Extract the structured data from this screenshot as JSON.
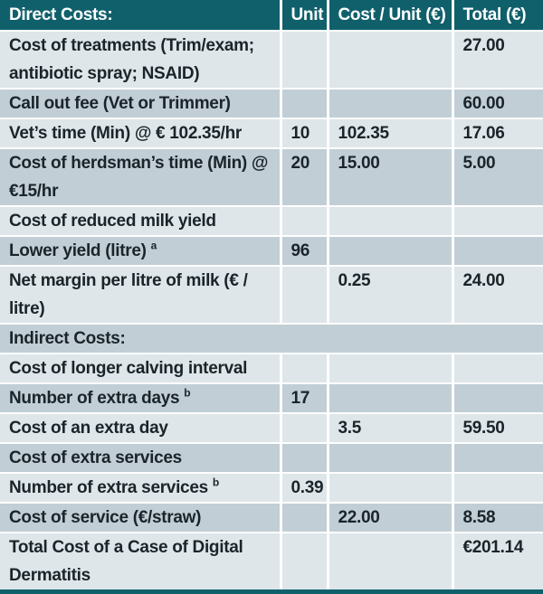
{
  "colors": {
    "accent_teal": "#10606b",
    "row_light": "#dee6e9",
    "row_dark": "#c1ced5",
    "header_text": "#ffffff",
    "body_text": "#1a242a"
  },
  "chart_data": {
    "type": "table",
    "columns": [
      "Direct Costs:",
      "Unit",
      "Cost / Unit (€)",
      "Total (€)"
    ],
    "rows": [
      {
        "label": "Cost of treatments (Trim/exam; antibiotic spray; NSAID)",
        "unit": "",
        "cost_per_unit": "",
        "total": "27.00"
      },
      {
        "label": "Call out fee (Vet or Trimmer)",
        "unit": "",
        "cost_per_unit": "",
        "total": "60.00"
      },
      {
        "label": "Vet’s time (Min) @ € 102.35/hr",
        "unit": "10",
        "cost_per_unit": "102.35",
        "total": "17.06"
      },
      {
        "label": "Cost of herdsman’s time (Min) @ €15/hr",
        "unit": "20",
        "cost_per_unit": "15.00",
        "total": "5.00"
      },
      {
        "label": "Cost of reduced milk yield",
        "unit": "",
        "cost_per_unit": "",
        "total": ""
      },
      {
        "label": "Lower yield (litre)",
        "label_sup": "a",
        "unit": "96",
        "cost_per_unit": "",
        "total": ""
      },
      {
        "label": "Net margin per litre of milk (€ / litre)",
        "unit": "",
        "cost_per_unit": "0.25",
        "total": "24.00"
      },
      {
        "label": "Indirect Costs:",
        "section_header": true
      },
      {
        "label": "Cost of longer calving interval",
        "unit": "",
        "cost_per_unit": "",
        "total": ""
      },
      {
        "label": "Number of extra days",
        "label_sup": "b",
        "unit": "17",
        "cost_per_unit": "",
        "total": ""
      },
      {
        "label": "Cost of an extra day",
        "unit": "",
        "cost_per_unit": "3.5",
        "total": "59.50"
      },
      {
        "label": "Cost of extra services",
        "unit": "",
        "cost_per_unit": "",
        "total": ""
      },
      {
        "label": "Number of extra services",
        "label_sup": "b",
        "unit": "0.39",
        "cost_per_unit": "",
        "total": ""
      },
      {
        "label": "Cost of service (€/straw)",
        "unit": "",
        "cost_per_unit": "22.00",
        "total": "8.58"
      },
      {
        "label": "Total Cost of a Case of Digital Dermatitis",
        "unit": "",
        "cost_per_unit": "",
        "total": "€201.14"
      }
    ]
  }
}
